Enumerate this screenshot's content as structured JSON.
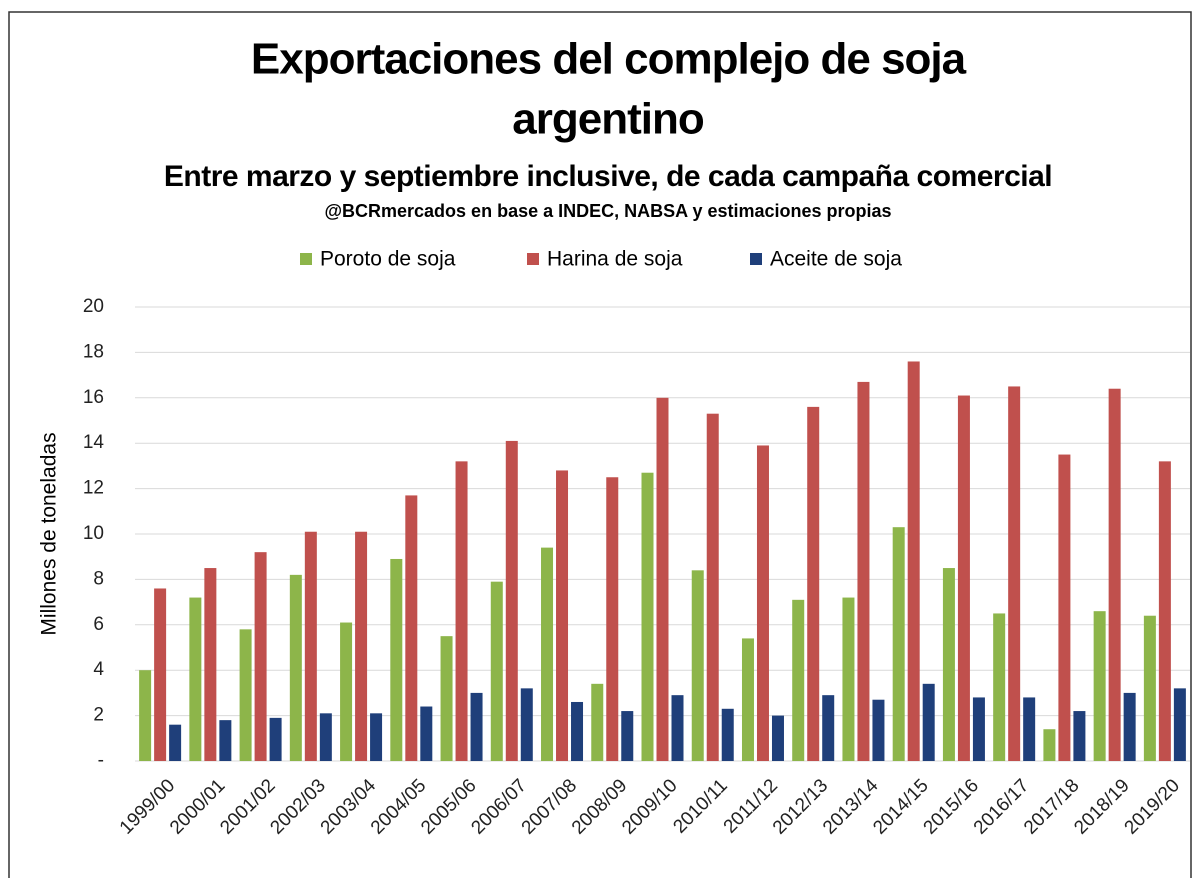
{
  "chart_data": {
    "type": "bar",
    "title": [
      "Exportaciones del complejo de soja",
      "argentino"
    ],
    "subtitle": "Entre marzo y septiembre inclusive, de cada campaña comercial",
    "source": "@BCRmercados en base a INDEC, NABSA y estimaciones propias",
    "y_label": "Millones de toneladas",
    "categories": [
      "1999/00",
      "2000/01",
      "2001/02",
      "2002/03",
      "2003/04",
      "2004/05",
      "2005/06",
      "2006/07",
      "2007/08",
      "2008/09",
      "2009/10",
      "2010/11",
      "2011/12",
      "2012/13",
      "2013/14",
      "2014/15",
      "2015/16",
      "2016/17",
      "2017/18",
      "2018/19",
      "2019/20"
    ],
    "series": [
      {
        "name": "Poroto de soja",
        "color": "#8db54a",
        "values": [
          4.0,
          7.2,
          5.8,
          8.2,
          6.1,
          8.9,
          5.5,
          7.9,
          9.4,
          3.4,
          12.7,
          8.4,
          5.4,
          7.1,
          7.2,
          10.3,
          8.5,
          6.5,
          1.4,
          6.6,
          6.4
        ]
      },
      {
        "name": "Harina de soja",
        "color": "#c0504d",
        "values": [
          7.6,
          8.5,
          9.2,
          10.1,
          10.1,
          11.7,
          13.2,
          14.1,
          12.8,
          12.5,
          16.0,
          15.3,
          13.9,
          15.6,
          16.7,
          17.6,
          16.1,
          16.5,
          13.5,
          16.4,
          13.2
        ]
      },
      {
        "name": "Aceite de soja",
        "color": "#1f3f7a",
        "values": [
          1.6,
          1.8,
          1.9,
          2.1,
          2.1,
          2.4,
          3.0,
          3.2,
          2.6,
          2.2,
          2.9,
          2.3,
          2.0,
          2.9,
          2.7,
          3.4,
          2.8,
          2.8,
          2.2,
          3.0,
          3.2
        ]
      }
    ],
    "ylim": [
      0,
      20
    ],
    "yticks": [
      {
        "value": 0,
        "label": "-"
      },
      2,
      4,
      6,
      8,
      10,
      12,
      14,
      16,
      18,
      20
    ],
    "grid": true,
    "legend": "top"
  }
}
